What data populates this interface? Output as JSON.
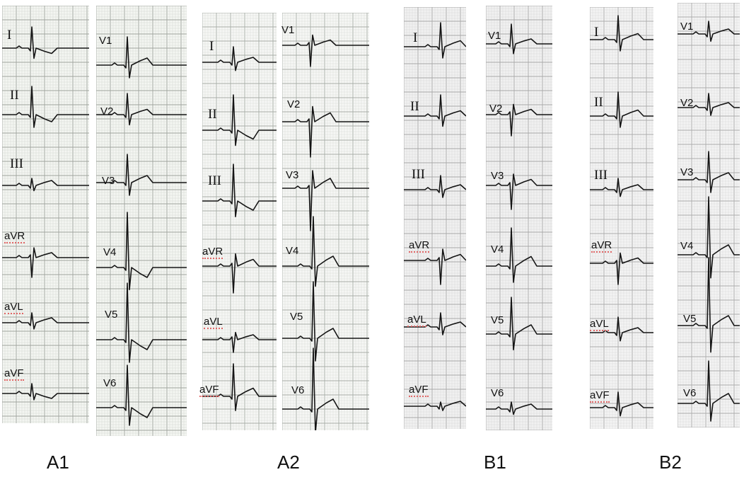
{
  "panels": [
    {
      "label": "A1",
      "paper": "#f4f6f2",
      "grid": "#c9cdc8",
      "major": "#9ea39c",
      "limb": [
        "I",
        "II",
        "III",
        "aVR",
        "aVL",
        "aVF"
      ],
      "chest": [
        "V1",
        "V2",
        "V3",
        "V4",
        "V5",
        "V6"
      ]
    },
    {
      "label": "A2",
      "paper": "#f6f7f5",
      "grid": "#d0d3cf",
      "major": "#a8aca6",
      "limb": [
        "I",
        "II",
        "III",
        "aVR",
        "aVL",
        "aVF"
      ],
      "chest": [
        "V1",
        "V2",
        "V3",
        "V4",
        "V5",
        "V6"
      ]
    },
    {
      "label": "B1",
      "paper": "#f1f1f1",
      "grid": "#cfcfcf",
      "major": "#a7a7a7",
      "limb": [
        "I",
        "II",
        "III",
        "aVR",
        "aVL",
        "aVF"
      ],
      "chest": [
        "V1",
        "V2",
        "V3",
        "V4",
        "V5",
        "V6"
      ]
    },
    {
      "label": "B2",
      "paper": "#f3f3f3",
      "grid": "#d2d2d2",
      "major": "#ababab",
      "limb": [
        "I",
        "II",
        "III",
        "aVR",
        "aVL",
        "aVF"
      ],
      "chest": [
        "V1",
        "V2",
        "V3",
        "V4",
        "V5",
        "V6"
      ]
    }
  ]
}
